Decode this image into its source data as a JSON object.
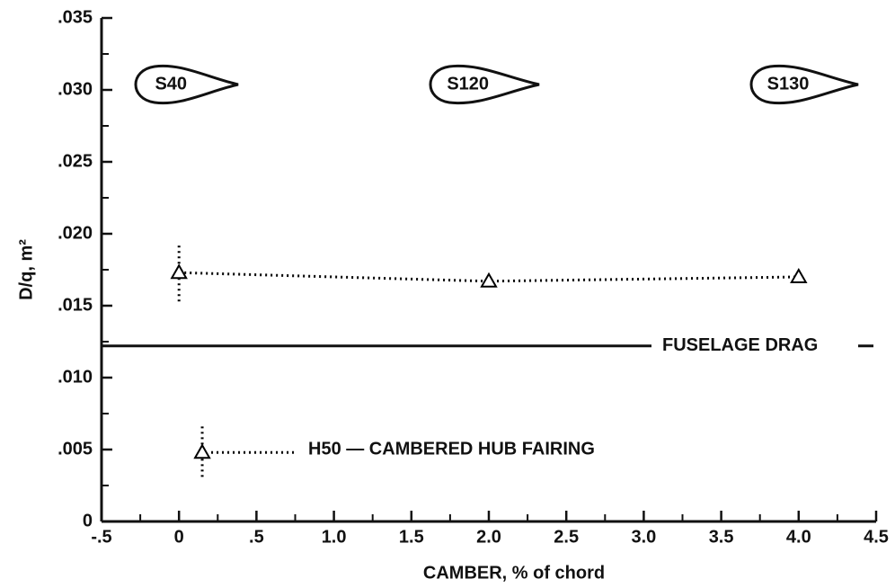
{
  "chart_data": {
    "type": "scatter",
    "xlabel": "CAMBER, % of chord",
    "ylabel": "D/q, m²",
    "xlim": [
      -0.5,
      4.5
    ],
    "ylim": [
      0,
      0.035
    ],
    "xticks": [
      {
        "value": -0.5,
        "label": "-.5"
      },
      0,
      {
        "value": 0.5,
        "label": ".5"
      },
      {
        "value": 1,
        "label": "1.0"
      },
      {
        "value": 1.5,
        "label": "1.5"
      },
      {
        "value": 2,
        "label": "2.0"
      },
      {
        "value": 2.5,
        "label": "2.5"
      },
      {
        "value": 3,
        "label": "3.0"
      },
      {
        "value": 3.5,
        "label": "3.5"
      },
      {
        "value": 4,
        "label": "4.0"
      },
      {
        "value": 4.5,
        "label": "4.5"
      }
    ],
    "yticks": [
      0,
      {
        "value": 0.005,
        "label": ".005"
      },
      {
        "value": 0.01,
        "label": ".010"
      },
      {
        "value": 0.015,
        "label": ".015"
      },
      {
        "value": 0.02,
        "label": ".020"
      },
      {
        "value": 0.025,
        "label": ".025"
      },
      {
        "value": 0.03,
        "label": ".030"
      },
      {
        "value": 0.035,
        "label": ".035"
      }
    ],
    "xminorticks": [
      -0.25,
      0.25,
      0.75,
      1.25,
      1.75,
      2.25,
      2.75,
      3.25,
      3.75,
      4.25
    ],
    "yminorticks": [
      0.0025,
      0.0075,
      0.0125,
      0.0175,
      0.0225,
      0.0275,
      0.0325
    ],
    "series": [
      {
        "x": [
          0,
          2,
          4
        ],
        "values": [
          0.0173,
          0.0167,
          0.017
        ],
        "err_lower": [
          0.0153,
          null,
          null
        ],
        "err_upper": [
          0.0194,
          null,
          null
        ],
        "color": "#000000"
      },
      {
        "name": "H50 — CAMBERED HUB FAIRING",
        "x": [
          0.15
        ],
        "values": [
          0.0048
        ],
        "err_lower": [
          0.0031
        ],
        "err_upper": [
          0.0068
        ],
        "color": "#000000"
      }
    ],
    "hlines": [
      {
        "value": 0.0122,
        "label": "FUSELAGE DRAG"
      }
    ],
    "annotations": [
      "S40",
      "S120",
      "S130"
    ]
  }
}
